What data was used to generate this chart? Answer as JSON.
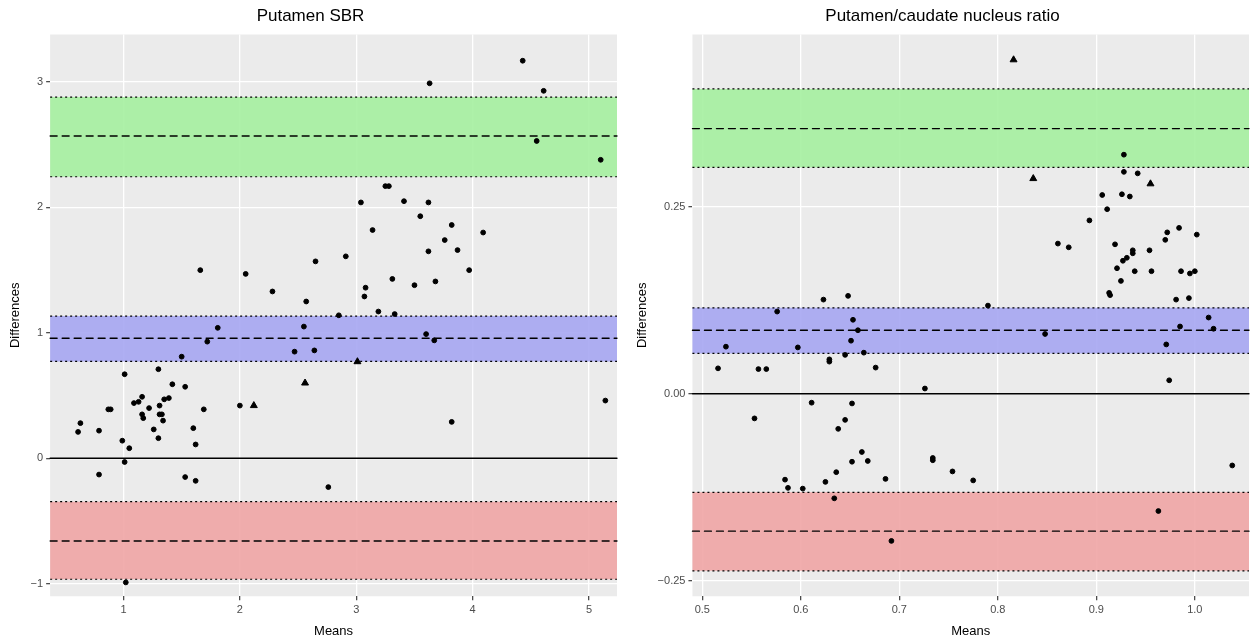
{
  "chart_data": [
    {
      "type": "scatter",
      "title": "Putamen SBR",
      "xlabel": "Means",
      "ylabel": "Differences",
      "xlim": [
        0.37,
        5.24
      ],
      "ylim": [
        -1.1,
        3.38
      ],
      "xticks": [
        1,
        2,
        3,
        4,
        5
      ],
      "yticks": [
        {
          "value": -1,
          "label": "−1"
        },
        0,
        1,
        2,
        3
      ],
      "grid": true,
      "legend": false,
      "series": [
        {
          "type": "scatter",
          "marker": "circle",
          "color": "#000000",
          "x": [
            0.61,
            0.63,
            0.79,
            0.79,
            0.87,
            0.89,
            0.99,
            1.01,
            1.01,
            1.05,
            1.02,
            1.09,
            1.13,
            1.16,
            1.16,
            1.17,
            1.22,
            1.26,
            1.3,
            1.3,
            1.31,
            1.31,
            1.33,
            1.34,
            1.35,
            1.39,
            1.42,
            1.5,
            1.53,
            1.53,
            1.6,
            1.62,
            1.62,
            1.66,
            1.69,
            1.72,
            1.81,
            2.0,
            2.05,
            2.28,
            2.47,
            2.55,
            2.57,
            2.64,
            2.65,
            4.43,
            3.63,
            4.61,
            4.55,
            5.1,
            3.25,
            3.28,
            3.04,
            3.41,
            3.62,
            3.55,
            3.82,
            3.14,
            4.09,
            3.76,
            3.62,
            3.87,
            2.91,
            3.97,
            3.31,
            3.68,
            3.5,
            3.08,
            3.07,
            3.19,
            3.33,
            2.85,
            3.6,
            3.67,
            5.14,
            3.82,
            2.76
          ],
          "values": [
            0.21,
            0.28,
            -0.13,
            0.22,
            0.39,
            0.39,
            0.14,
            0.67,
            -0.03,
            0.08,
            -0.99,
            0.44,
            0.45,
            0.49,
            0.35,
            0.32,
            0.4,
            0.23,
            0.71,
            0.16,
            0.42,
            0.35,
            0.35,
            0.3,
            0.47,
            0.48,
            0.59,
            0.81,
            0.57,
            -0.15,
            0.24,
            0.11,
            -0.18,
            1.5,
            0.39,
            0.93,
            1.04,
            0.42,
            1.47,
            1.33,
            0.85,
            1.05,
            1.25,
            0.86,
            1.57,
            3.17,
            2.99,
            2.93,
            2.53,
            2.38,
            2.17,
            2.17,
            2.04,
            2.05,
            2.04,
            1.93,
            1.86,
            1.82,
            1.8,
            1.74,
            1.65,
            1.66,
            1.61,
            1.5,
            1.43,
            1.41,
            1.38,
            1.36,
            1.29,
            1.17,
            1.15,
            1.14,
            0.99,
            0.94,
            0.46,
            0.29,
            -0.23
          ]
        },
        {
          "type": "scatter",
          "marker": "triangle",
          "color": "#000000",
          "x": [
            2.12,
            2.56,
            3.01
          ],
          "values": [
            0.42,
            0.6,
            0.77
          ]
        }
      ],
      "ref_lines": [
        {
          "axis": "y",
          "value": 0,
          "color": "#000000",
          "line_style": "solid"
        },
        {
          "axis": "y",
          "value": 2.57,
          "color": "#000000",
          "line_style": "dashed"
        },
        {
          "axis": "y",
          "value": 0.957,
          "color": "#000000",
          "line_style": "dashed"
        },
        {
          "axis": "y",
          "value": -0.66,
          "color": "#000000",
          "line_style": "dashed"
        }
      ],
      "bands": [
        {
          "axis": "y",
          "from": 2.245,
          "to": 2.88,
          "color": "#a5efa0"
        },
        {
          "axis": "y",
          "from": 0.772,
          "to": 1.134,
          "color": "#a6a6f2"
        },
        {
          "axis": "y",
          "from": -0.965,
          "to": -0.346,
          "color": "#f0a5a5"
        }
      ]
    },
    {
      "type": "scatter",
      "title": "Putamen/caudate nucleus ratio",
      "xlabel": "Means",
      "ylabel": "Differences",
      "xlim": [
        0.49,
        1.055
      ],
      "ylim": [
        -0.271,
        0.481
      ],
      "xticks": [
        {
          "value": 0.5,
          "label": "0.5"
        },
        {
          "value": 0.6,
          "label": "0.6"
        },
        {
          "value": 0.7,
          "label": "0.7"
        },
        {
          "value": 0.8,
          "label": "0.8"
        },
        {
          "value": 0.9,
          "label": "0.9"
        },
        {
          "value": 1,
          "label": "1.0"
        }
      ],
      "yticks": [
        {
          "value": -0.25,
          "label": "−0.25"
        },
        {
          "value": 0,
          "label": "0.00"
        },
        0.25
      ],
      "grid": true,
      "legend": false,
      "series": [
        {
          "type": "scatter",
          "marker": "circle",
          "color": "#000000",
          "x": [
            0.516,
            0.524,
            0.553,
            0.557,
            0.565,
            0.576,
            0.584,
            0.587,
            0.597,
            0.602,
            0.611,
            0.623,
            0.625,
            0.629,
            0.629,
            0.634,
            0.636,
            0.638,
            0.645,
            0.645,
            0.648,
            0.651,
            0.652,
            0.652,
            0.653,
            0.658,
            0.662,
            0.664,
            0.668,
            0.676,
            0.686,
            0.692,
            0.726,
            0.734,
            0.734,
            0.754,
            0.775,
            0.79,
            0.848,
            0.861,
            0.872,
            0.893,
            0.906,
            0.911,
            0.913,
            0.914,
            0.919,
            0.921,
            0.925,
            0.926,
            0.927,
            0.928,
            0.928,
            0.931,
            0.934,
            0.937,
            0.937,
            0.939,
            0.942,
            0.954,
            0.956,
            0.963,
            0.97,
            0.971,
            0.972,
            0.974,
            0.981,
            0.984,
            0.985,
            0.986,
            0.994,
            0.995,
            1.0,
            1.002,
            1.014,
            1.019,
            1.038
          ],
          "values": [
            0.034,
            0.063,
            -0.033,
            0.033,
            0.033,
            0.11,
            -0.115,
            -0.126,
            0.062,
            -0.127,
            -0.012,
            0.126,
            -0.118,
            0.046,
            0.043,
            -0.14,
            -0.105,
            -0.047,
            -0.035,
            0.052,
            0.131,
            0.071,
            -0.013,
            -0.091,
            0.099,
            0.085,
            -0.078,
            0.055,
            -0.09,
            0.035,
            -0.114,
            -0.197,
            0.007,
            -0.086,
            -0.089,
            -0.104,
            -0.116,
            0.118,
            0.08,
            0.201,
            0.196,
            0.232,
            0.266,
            0.247,
            0.135,
            0.132,
            0.2,
            0.168,
            0.151,
            0.267,
            0.178,
            0.297,
            0.32,
            0.182,
            0.264,
            0.188,
            0.192,
            0.164,
            0.295,
            0.192,
            0.164,
            -0.157,
            0.206,
            0.066,
            0.216,
            0.018,
            0.126,
            0.222,
            0.09,
            0.164,
            0.128,
            0.161,
            0.164,
            0.213,
            0.102,
            0.087,
            -0.096
          ]
        },
        {
          "type": "scatter",
          "marker": "triangle",
          "color": "#000000",
          "x": [
            0.816,
            0.836,
            0.955
          ],
          "values": [
            0.447,
            0.288,
            0.281
          ]
        }
      ],
      "ref_lines": [
        {
          "axis": "y",
          "value": 0,
          "color": "#000000",
          "line_style": "solid"
        },
        {
          "axis": "y",
          "value": 0.355,
          "color": "#000000",
          "line_style": "dashed"
        },
        {
          "axis": "y",
          "value": 0.085,
          "color": "#000000",
          "line_style": "dashed"
        },
        {
          "axis": "y",
          "value": -0.184,
          "color": "#000000",
          "line_style": "dashed"
        }
      ],
      "bands": [
        {
          "axis": "y",
          "from": 0.303,
          "to": 0.408,
          "color": "#a5efa0"
        },
        {
          "axis": "y",
          "from": 0.054,
          "to": 0.115,
          "color": "#a6a6f2"
        },
        {
          "axis": "y",
          "from": -0.237,
          "to": -0.132,
          "color": "#f0a5a5"
        }
      ]
    }
  ]
}
